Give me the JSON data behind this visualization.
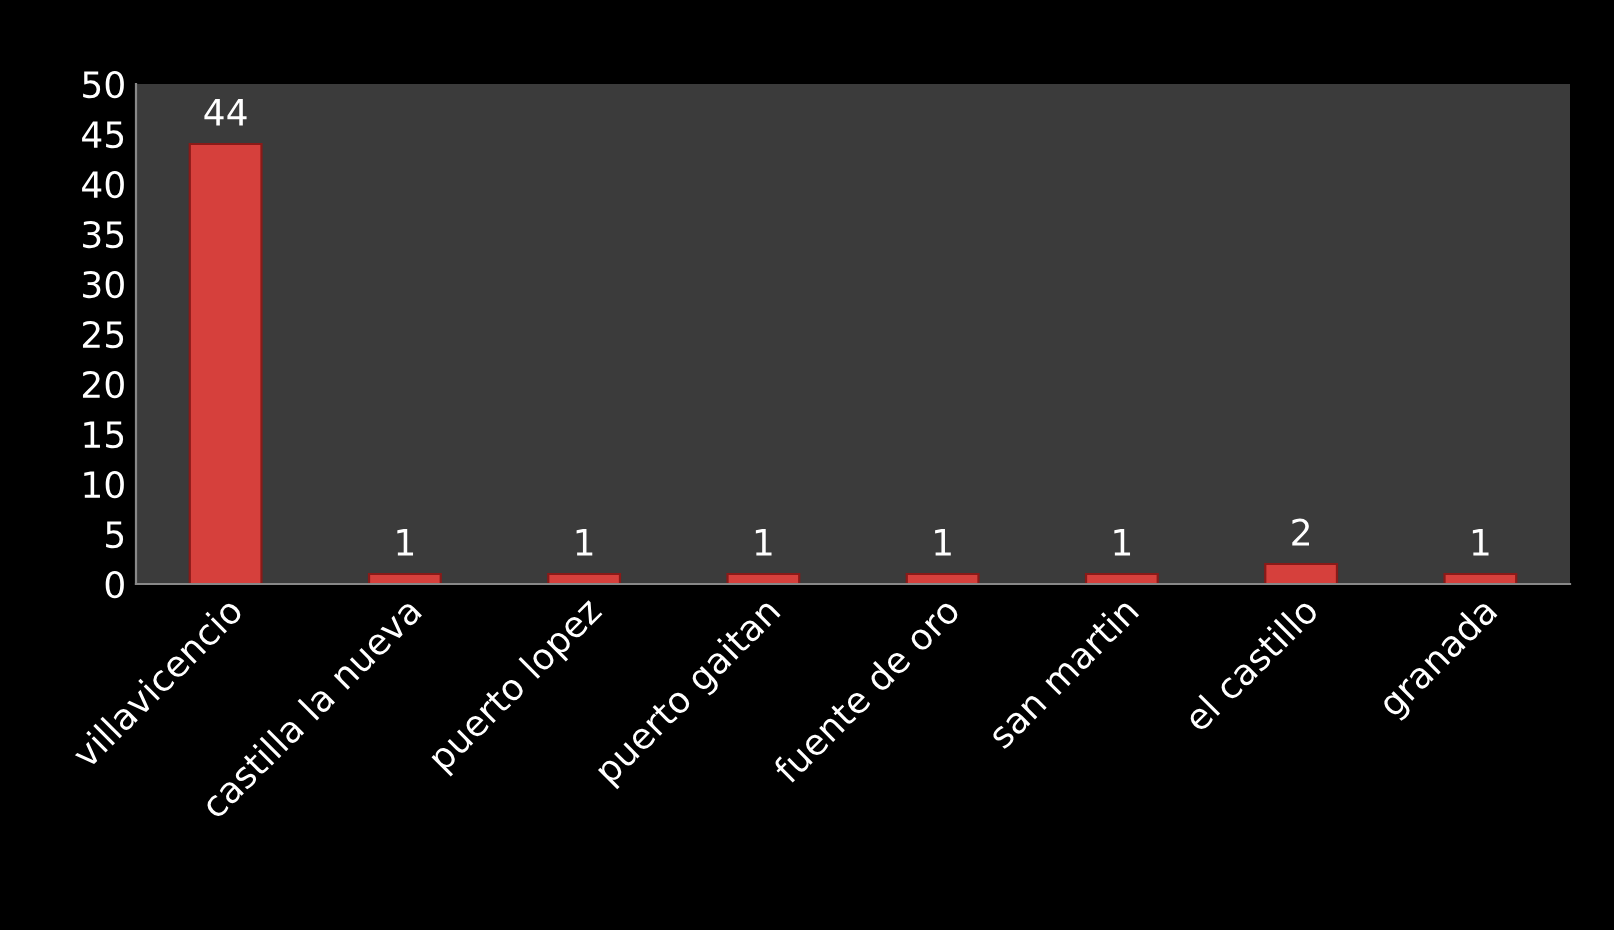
{
  "chart_data": {
    "type": "bar",
    "categories": [
      "villavicencio",
      "castilla la nueva",
      "puerto lopez",
      "puerto gaitan",
      "fuente de oro",
      "san martin",
      "el castillo",
      "granada"
    ],
    "values": [
      44,
      1,
      1,
      1,
      1,
      1,
      2,
      1
    ],
    "color": "#d6403c",
    "ylim": [
      0,
      50
    ],
    "yticks": [
      0,
      5,
      10,
      15,
      20,
      25,
      30,
      35,
      40,
      45,
      50
    ],
    "data_labels": true,
    "grid": false,
    "legend": false
  }
}
